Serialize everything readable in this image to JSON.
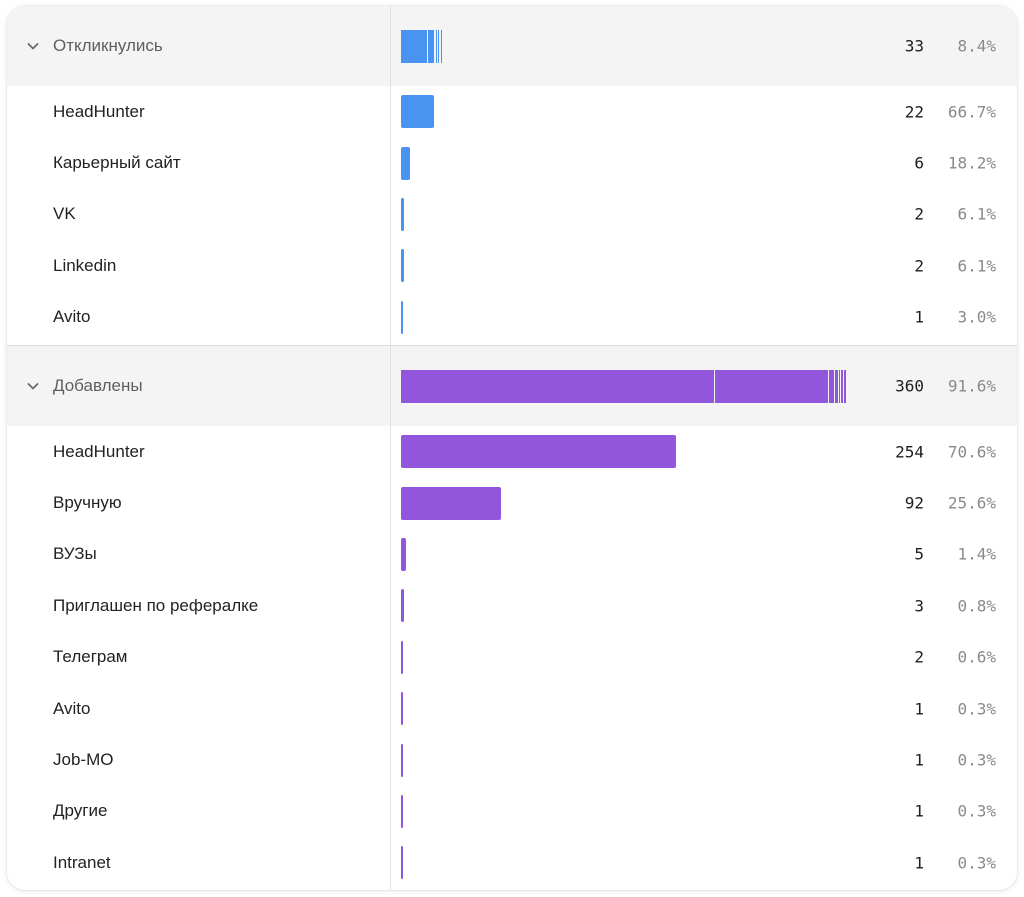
{
  "colors": {
    "responded": "#4a94f1",
    "added": "#9256dc"
  },
  "groups": [
    {
      "label": "Откликнулись",
      "count": "33",
      "percent": "8.4%",
      "share": 0.084,
      "color_key": "responded",
      "expanded_icon": "chevron-down-icon",
      "items": [
        {
          "label": "HeadHunter",
          "count": "22",
          "percent": "66.7%",
          "value": 22
        },
        {
          "label": "Карьерный сайт",
          "count": "6",
          "percent": "18.2%",
          "value": 6
        },
        {
          "label": "VK",
          "count": "2",
          "percent": "6.1%",
          "value": 2
        },
        {
          "label": "Linkedin",
          "count": "2",
          "percent": "6.1%",
          "value": 2
        },
        {
          "label": "Avito",
          "count": "1",
          "percent": "3.0%",
          "value": 1
        }
      ]
    },
    {
      "label": "Добавлены",
      "count": "360",
      "percent": "91.6%",
      "share": 0.916,
      "color_key": "added",
      "expanded_icon": "chevron-down-icon",
      "items": [
        {
          "label": "HeadHunter",
          "count": "254",
          "percent": "70.6%",
          "value": 254
        },
        {
          "label": "Вручную",
          "count": "92",
          "percent": "25.6%",
          "value": 92
        },
        {
          "label": "ВУЗы",
          "count": "5",
          "percent": "1.4%",
          "value": 5
        },
        {
          "label": "Приглашен по рефералке",
          "count": "3",
          "percent": "0.8%",
          "value": 3
        },
        {
          "label": "Телеграм",
          "count": "2",
          "percent": "0.6%",
          "value": 2
        },
        {
          "label": "Avito",
          "count": "1",
          "percent": "0.3%",
          "value": 1
        },
        {
          "label": "Job-MO",
          "count": "1",
          "percent": "0.3%",
          "value": 1
        },
        {
          "label": "Другие",
          "count": "1",
          "percent": "0.3%",
          "value": 1
        },
        {
          "label": "Intranet",
          "count": "1",
          "percent": "0.3%",
          "value": 1
        }
      ]
    }
  ]
}
